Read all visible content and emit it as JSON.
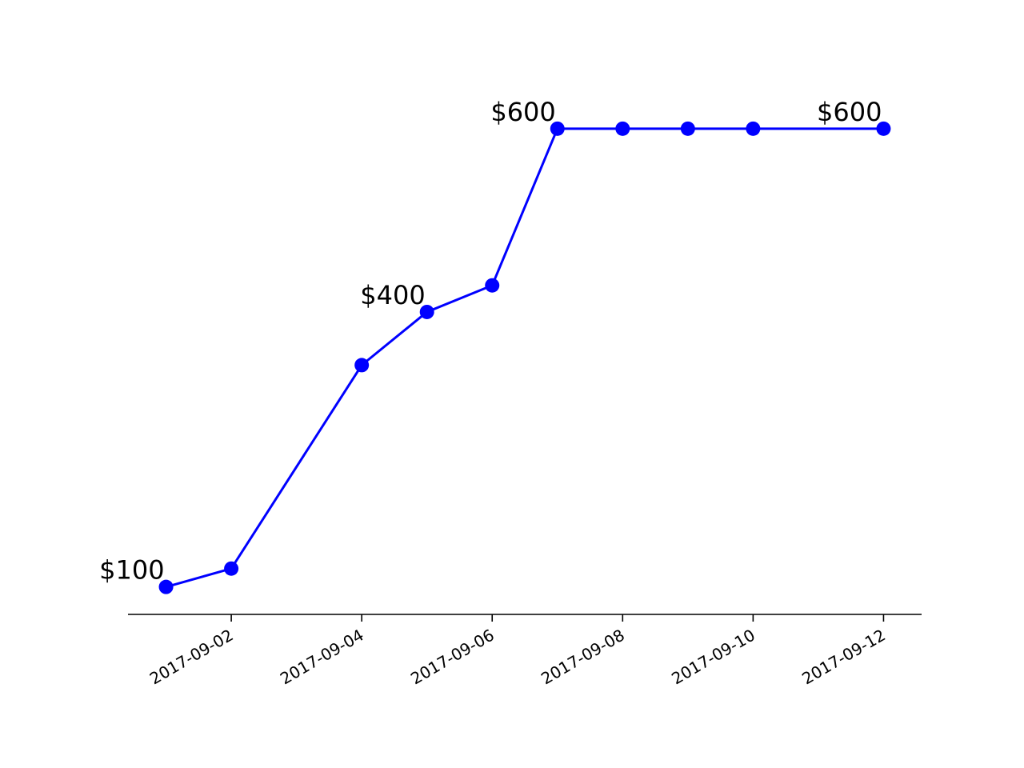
{
  "chart_data": {
    "type": "line",
    "x": [
      "2017-09-01",
      "2017-09-02",
      "2017-09-04",
      "2017-09-05",
      "2017-09-06",
      "2017-09-07",
      "2017-09-08",
      "2017-09-09",
      "2017-09-10",
      "2017-09-12"
    ],
    "series": [
      {
        "values": [
          100,
          120,
          342,
          400,
          429,
          600,
          600,
          600,
          600,
          600
        ],
        "color": "#0000ff",
        "marker": "circle"
      }
    ],
    "x_ticks": [
      "2017-09-02",
      "2017-09-04",
      "2017-09-06",
      "2017-09-08",
      "2017-09-10",
      "2017-09-12"
    ],
    "annotations": [
      {
        "x": "2017-09-01",
        "y": 100,
        "text": "$100"
      },
      {
        "x": "2017-09-05",
        "y": 400,
        "text": "$400"
      },
      {
        "x": "2017-09-07",
        "y": 600,
        "text": "$600"
      },
      {
        "x": "2017-09-12",
        "y": 600,
        "text": "$600"
      }
    ],
    "xlim": [
      "2017-08-31T10:00",
      "2017-09-12T14:00"
    ],
    "ylim": [
      70,
      640
    ],
    "y_axis_visible": false,
    "grid": false,
    "tick_label_rotation": 30
  }
}
